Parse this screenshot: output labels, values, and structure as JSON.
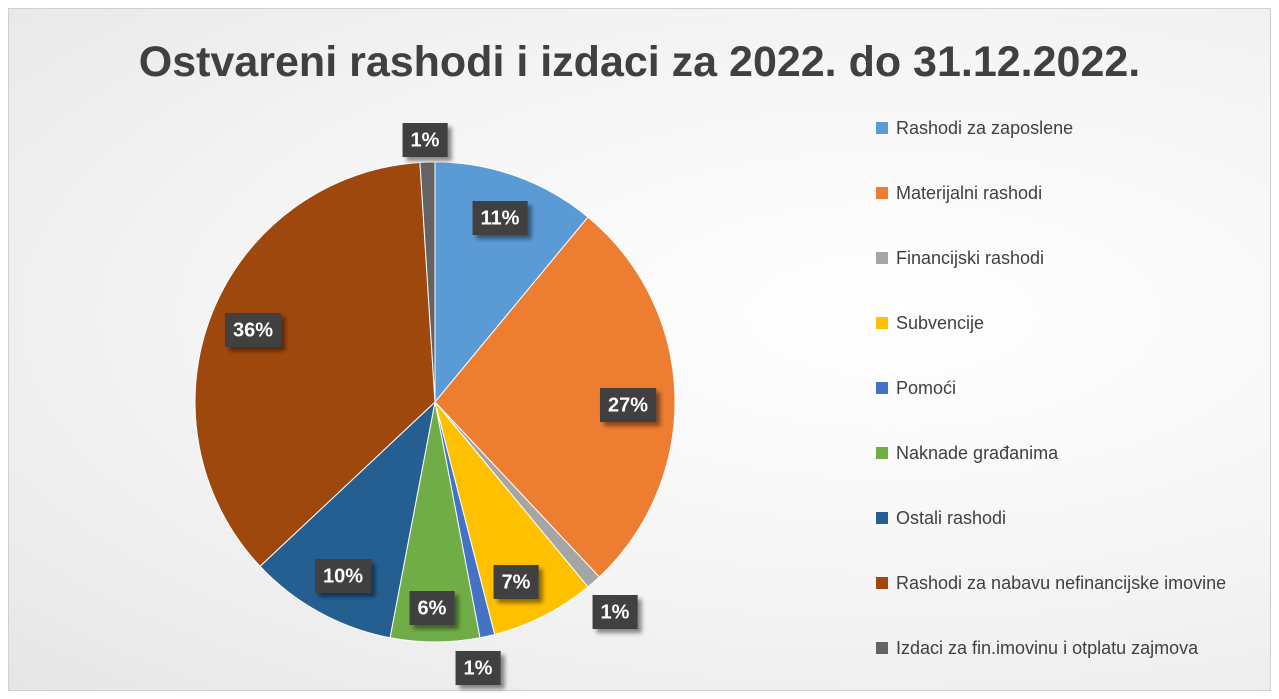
{
  "chart_data": {
    "type": "pie",
    "title": "Ostvareni rashodi i izdaci za 2022. do 31.12.2022.",
    "categories": [
      "Rashodi za zaposlene",
      "Materijalni rashodi",
      "Financijski rashodi",
      "Subvencije",
      "Pomoći",
      "Naknade građanima",
      "Ostali rashodi",
      "Rashodi za nabavu nefinancijske imovine",
      "Izdaci za fin.imovinu i otplatu zajmova"
    ],
    "values": [
      11,
      27,
      1,
      7,
      1,
      6,
      10,
      36,
      1
    ],
    "value_labels": [
      "11%",
      "27%",
      "1%",
      "7%",
      "1%",
      "6%",
      "10%",
      "36%",
      "1%"
    ],
    "colors": [
      "#5b9bd5",
      "#ed7d31",
      "#a5a5a5",
      "#ffc000",
      "#4472c4",
      "#70ad47",
      "#255e91",
      "#9e480e",
      "#636363"
    ],
    "legend": "right"
  }
}
